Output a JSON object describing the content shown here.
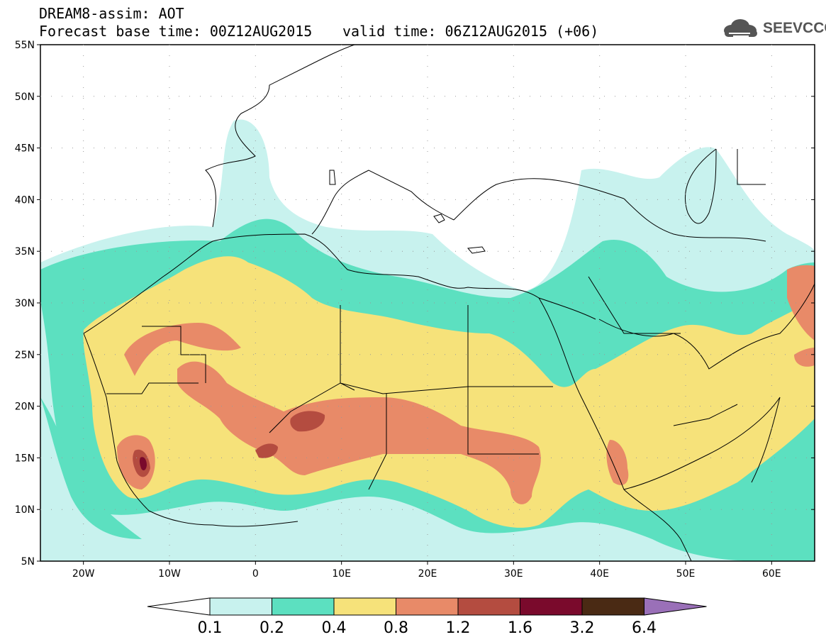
{
  "header": {
    "line1": "DREAM8-assim: AOT",
    "line2_left": "Forecast base time: 00Z12AUG2015",
    "line2_right": "valid time: 06Z12AUG2015 (+06)"
  },
  "logo": {
    "text": "SEEVCCC",
    "icon": "cloud-icon",
    "color": "#555555"
  },
  "map": {
    "lon_range": [
      -25,
      65
    ],
    "lat_range": [
      5,
      55
    ],
    "lat_ticks": [
      "55N",
      "50N",
      "45N",
      "40N",
      "35N",
      "30N",
      "25N",
      "20N",
      "15N",
      "10N",
      "5N"
    ],
    "lon_ticks": [
      "20W",
      "10W",
      "0",
      "10E",
      "20E",
      "30E",
      "40E",
      "50E",
      "60E"
    ]
  },
  "colorbar": {
    "levels": [
      "0.1",
      "0.2",
      "0.4",
      "0.8",
      "1.2",
      "1.6",
      "3.2",
      "6.4"
    ],
    "colors": [
      "#c8f2ee",
      "#5ce0c0",
      "#f6e27a",
      "#e88a68",
      "#b44c40",
      "#7a0a2c",
      "#4a2a14",
      "#9a70b8"
    ]
  }
}
